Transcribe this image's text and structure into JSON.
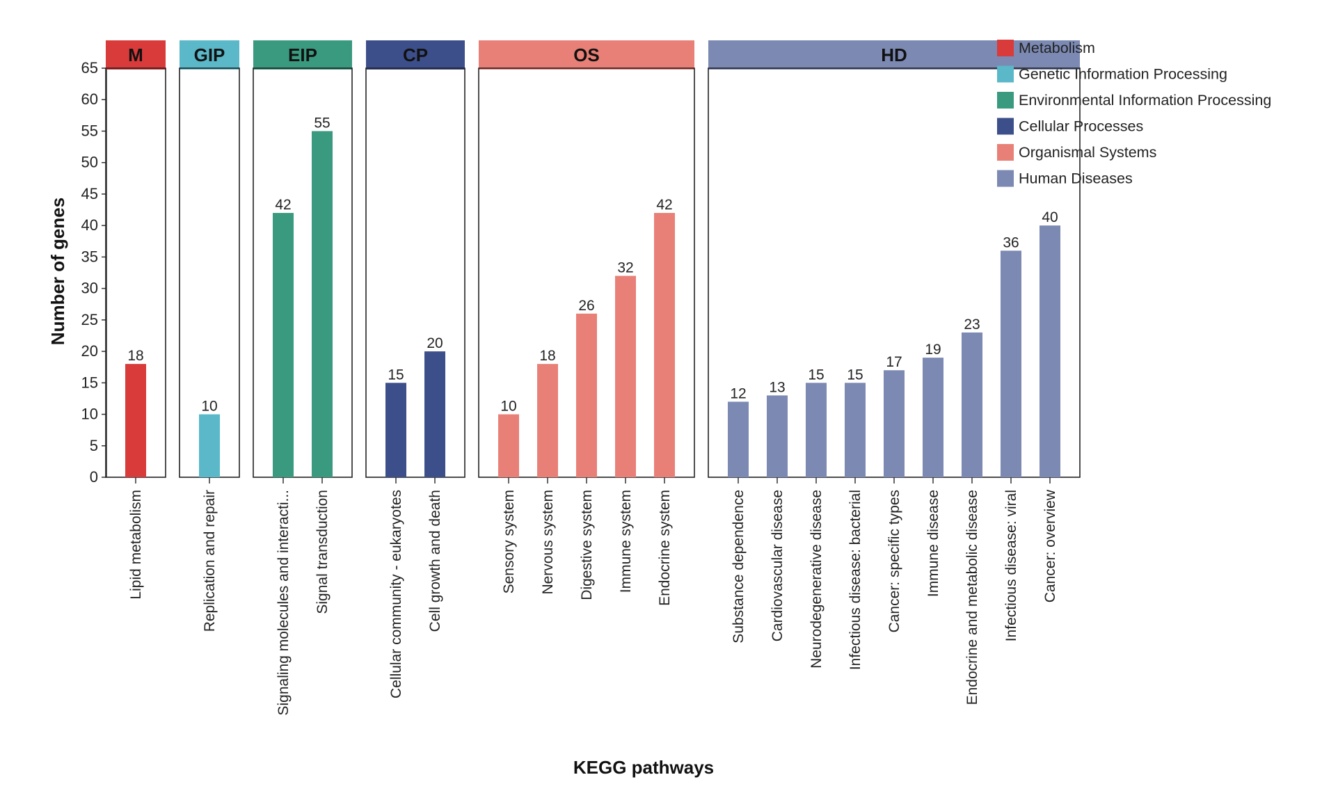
{
  "chart_data": {
    "type": "bar",
    "title": "",
    "xlabel": "KEGG pathways",
    "ylabel": "Number of genes",
    "ylim": [
      0,
      65
    ],
    "yticks": [
      0,
      5,
      10,
      15,
      20,
      25,
      30,
      35,
      40,
      45,
      50,
      55,
      60,
      65
    ],
    "grid": false,
    "legend_position": "top-right",
    "groups": [
      {
        "code": "M",
        "name": "Metabolism",
        "color": "#d93a3a",
        "categories": [
          "Lipid metabolism"
        ],
        "values": [
          18
        ]
      },
      {
        "code": "GIP",
        "name": "Genetic Information Processing",
        "color": "#5ab8c9",
        "categories": [
          "Replication and repair"
        ],
        "values": [
          10
        ]
      },
      {
        "code": "EIP",
        "name": "Environmental Information Processing",
        "color": "#3a9a7f",
        "categories": [
          "Signaling molecules and interacti...",
          "Signal transduction"
        ],
        "values": [
          42,
          55
        ]
      },
      {
        "code": "CP",
        "name": "Cellular Processes",
        "color": "#3d4f8a",
        "categories": [
          "Cellular community - eukaryotes",
          "Cell growth and death"
        ],
        "values": [
          15,
          20
        ]
      },
      {
        "code": "OS",
        "name": "Organismal Systems",
        "color": "#e98077",
        "categories": [
          "Sensory system",
          "Nervous system",
          "Digestive system",
          "Immune system",
          "Endocrine system"
        ],
        "values": [
          10,
          18,
          26,
          32,
          42
        ]
      },
      {
        "code": "HD",
        "name": "Human Diseases",
        "color": "#7b89b3",
        "categories": [
          "Substance dependence",
          "Cardiovascular disease",
          "Neurodegenerative disease",
          "Infectious disease: bacterial",
          "Cancer: specific types",
          "Immune disease",
          "Endocrine and metabolic disease",
          "Infectious disease: viral",
          "Cancer: overview"
        ],
        "values": [
          12,
          13,
          15,
          15,
          17,
          19,
          23,
          36,
          40
        ]
      }
    ]
  }
}
